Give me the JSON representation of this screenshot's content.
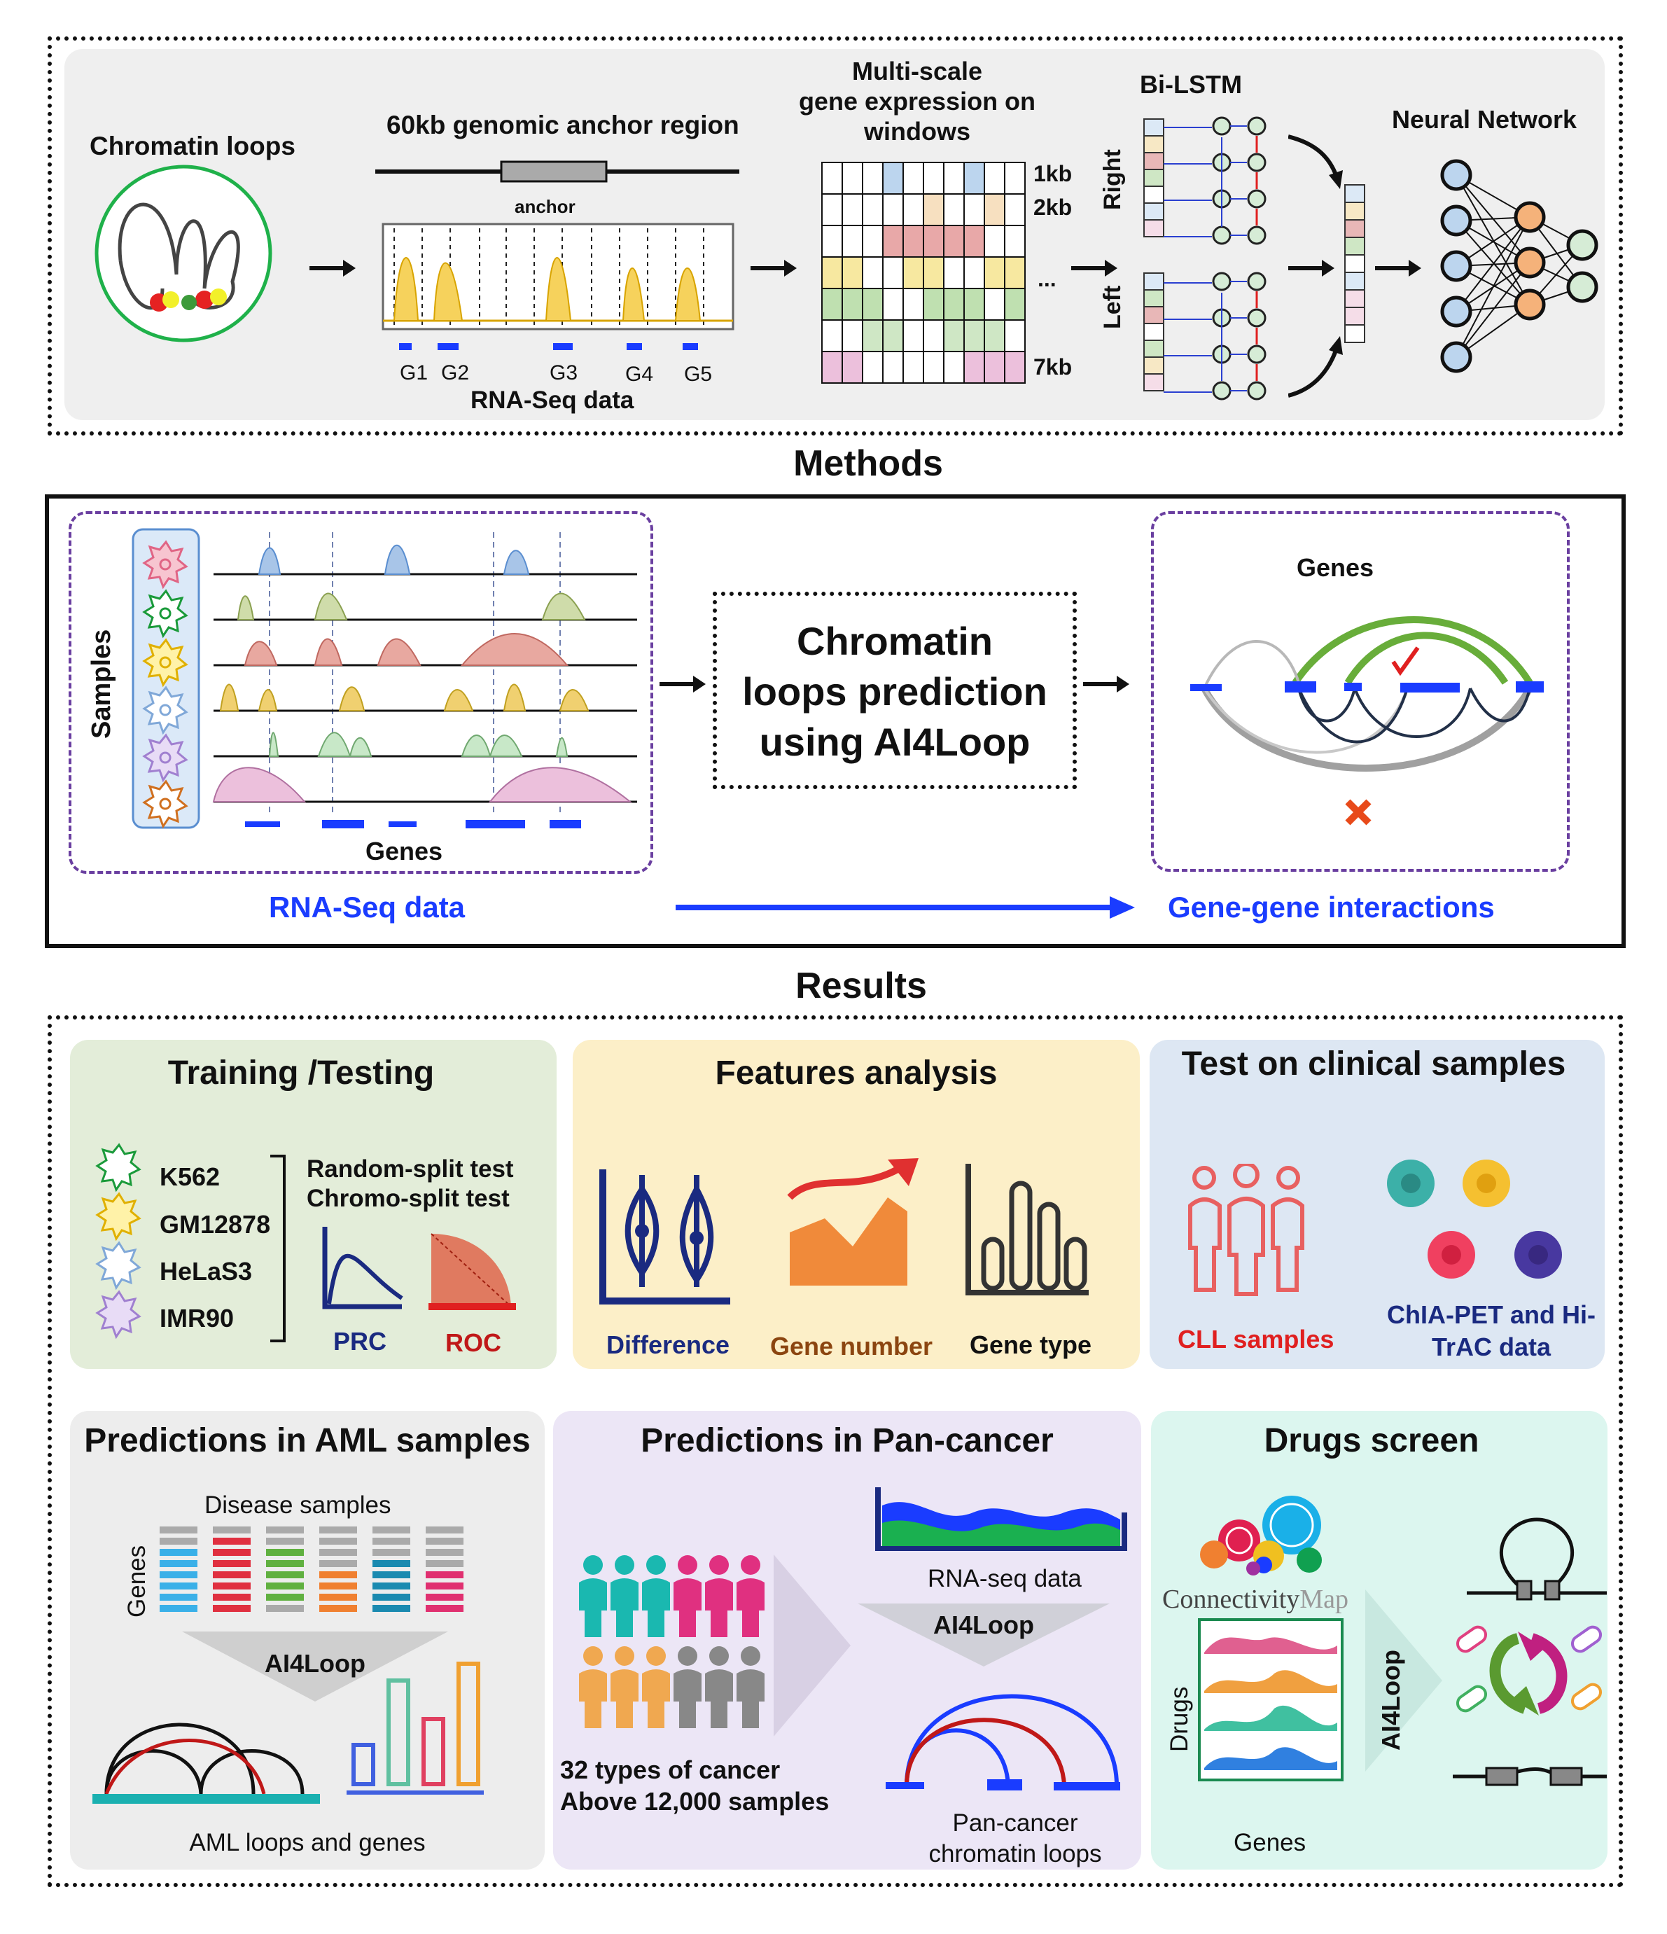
{
  "top": {
    "chromatin_loops": "Chromatin loops",
    "genomic_region": "60kb genomic  anchor region",
    "anchor": "anchor",
    "genes": [
      "G1",
      "G2",
      "G3",
      "G4",
      "G5"
    ],
    "rnaseq": "RNA-Seq data",
    "multiscale": "Multi-scale\ngene expression on\nwindows",
    "scales": [
      "1kb",
      "2kb",
      "...",
      "7kb"
    ],
    "bilstm": "Bi-LSTM",
    "right": "Right",
    "left": "Left",
    "neural_network": "Neural Network"
  },
  "methods": {
    "heading": "Methods",
    "samples": "Samples",
    "genes_left": "Genes",
    "center": "Chromatin\nloops prediction\nusing AI4Loop",
    "genes_right": "Genes",
    "rnaseq": "RNA-Seq data",
    "interactions": "Gene-gene interactions",
    "accent": "#1a3cff"
  },
  "results": {
    "heading": "Results",
    "training": {
      "title": "Training /Testing",
      "cells": [
        "K562",
        "GM12878",
        "HeLaS3",
        "IMR90"
      ],
      "tests": [
        "Random-split test",
        "Chromo-split test"
      ],
      "prc": "PRC",
      "roc": "ROC"
    },
    "features": {
      "title": "Features analysis",
      "items": [
        "Difference",
        "Gene number",
        "Gene type"
      ]
    },
    "clinical": {
      "title": "Test on clinical samples",
      "cll": "CLL samples",
      "chia": "ChIA-PET and Hi-\nTrAC data"
    },
    "aml": {
      "title": "Predictions in AML samples",
      "disease": "Disease samples",
      "genes": "Genes",
      "ai4loop": "AI4Loop",
      "caption": "AML loops and genes"
    },
    "pancancer": {
      "title": "Predictions in Pan-cancer",
      "rnaseq": "RNA-seq data",
      "ai4loop": "AI4Loop",
      "stats": "32 types of cancer\nAbove 12,000 samples",
      "caption": "Pan-cancer\nchromatin loops"
    },
    "drugs": {
      "title": "Drugs screen",
      "cmap1": "Connectivity",
      "cmap2": "Map",
      "drugs": "Drugs",
      "genes": "Genes",
      "ai4loop": "AI4Loop"
    }
  },
  "colors": {
    "training_bg": "#e3edd9",
    "features_bg": "#fcefc8",
    "clinical_bg": "#dde7f3",
    "aml_bg": "#ededed",
    "pancancer_bg": "#ece6f6",
    "drugs_bg": "#dcf6ef",
    "top_bg": "#efefef"
  }
}
